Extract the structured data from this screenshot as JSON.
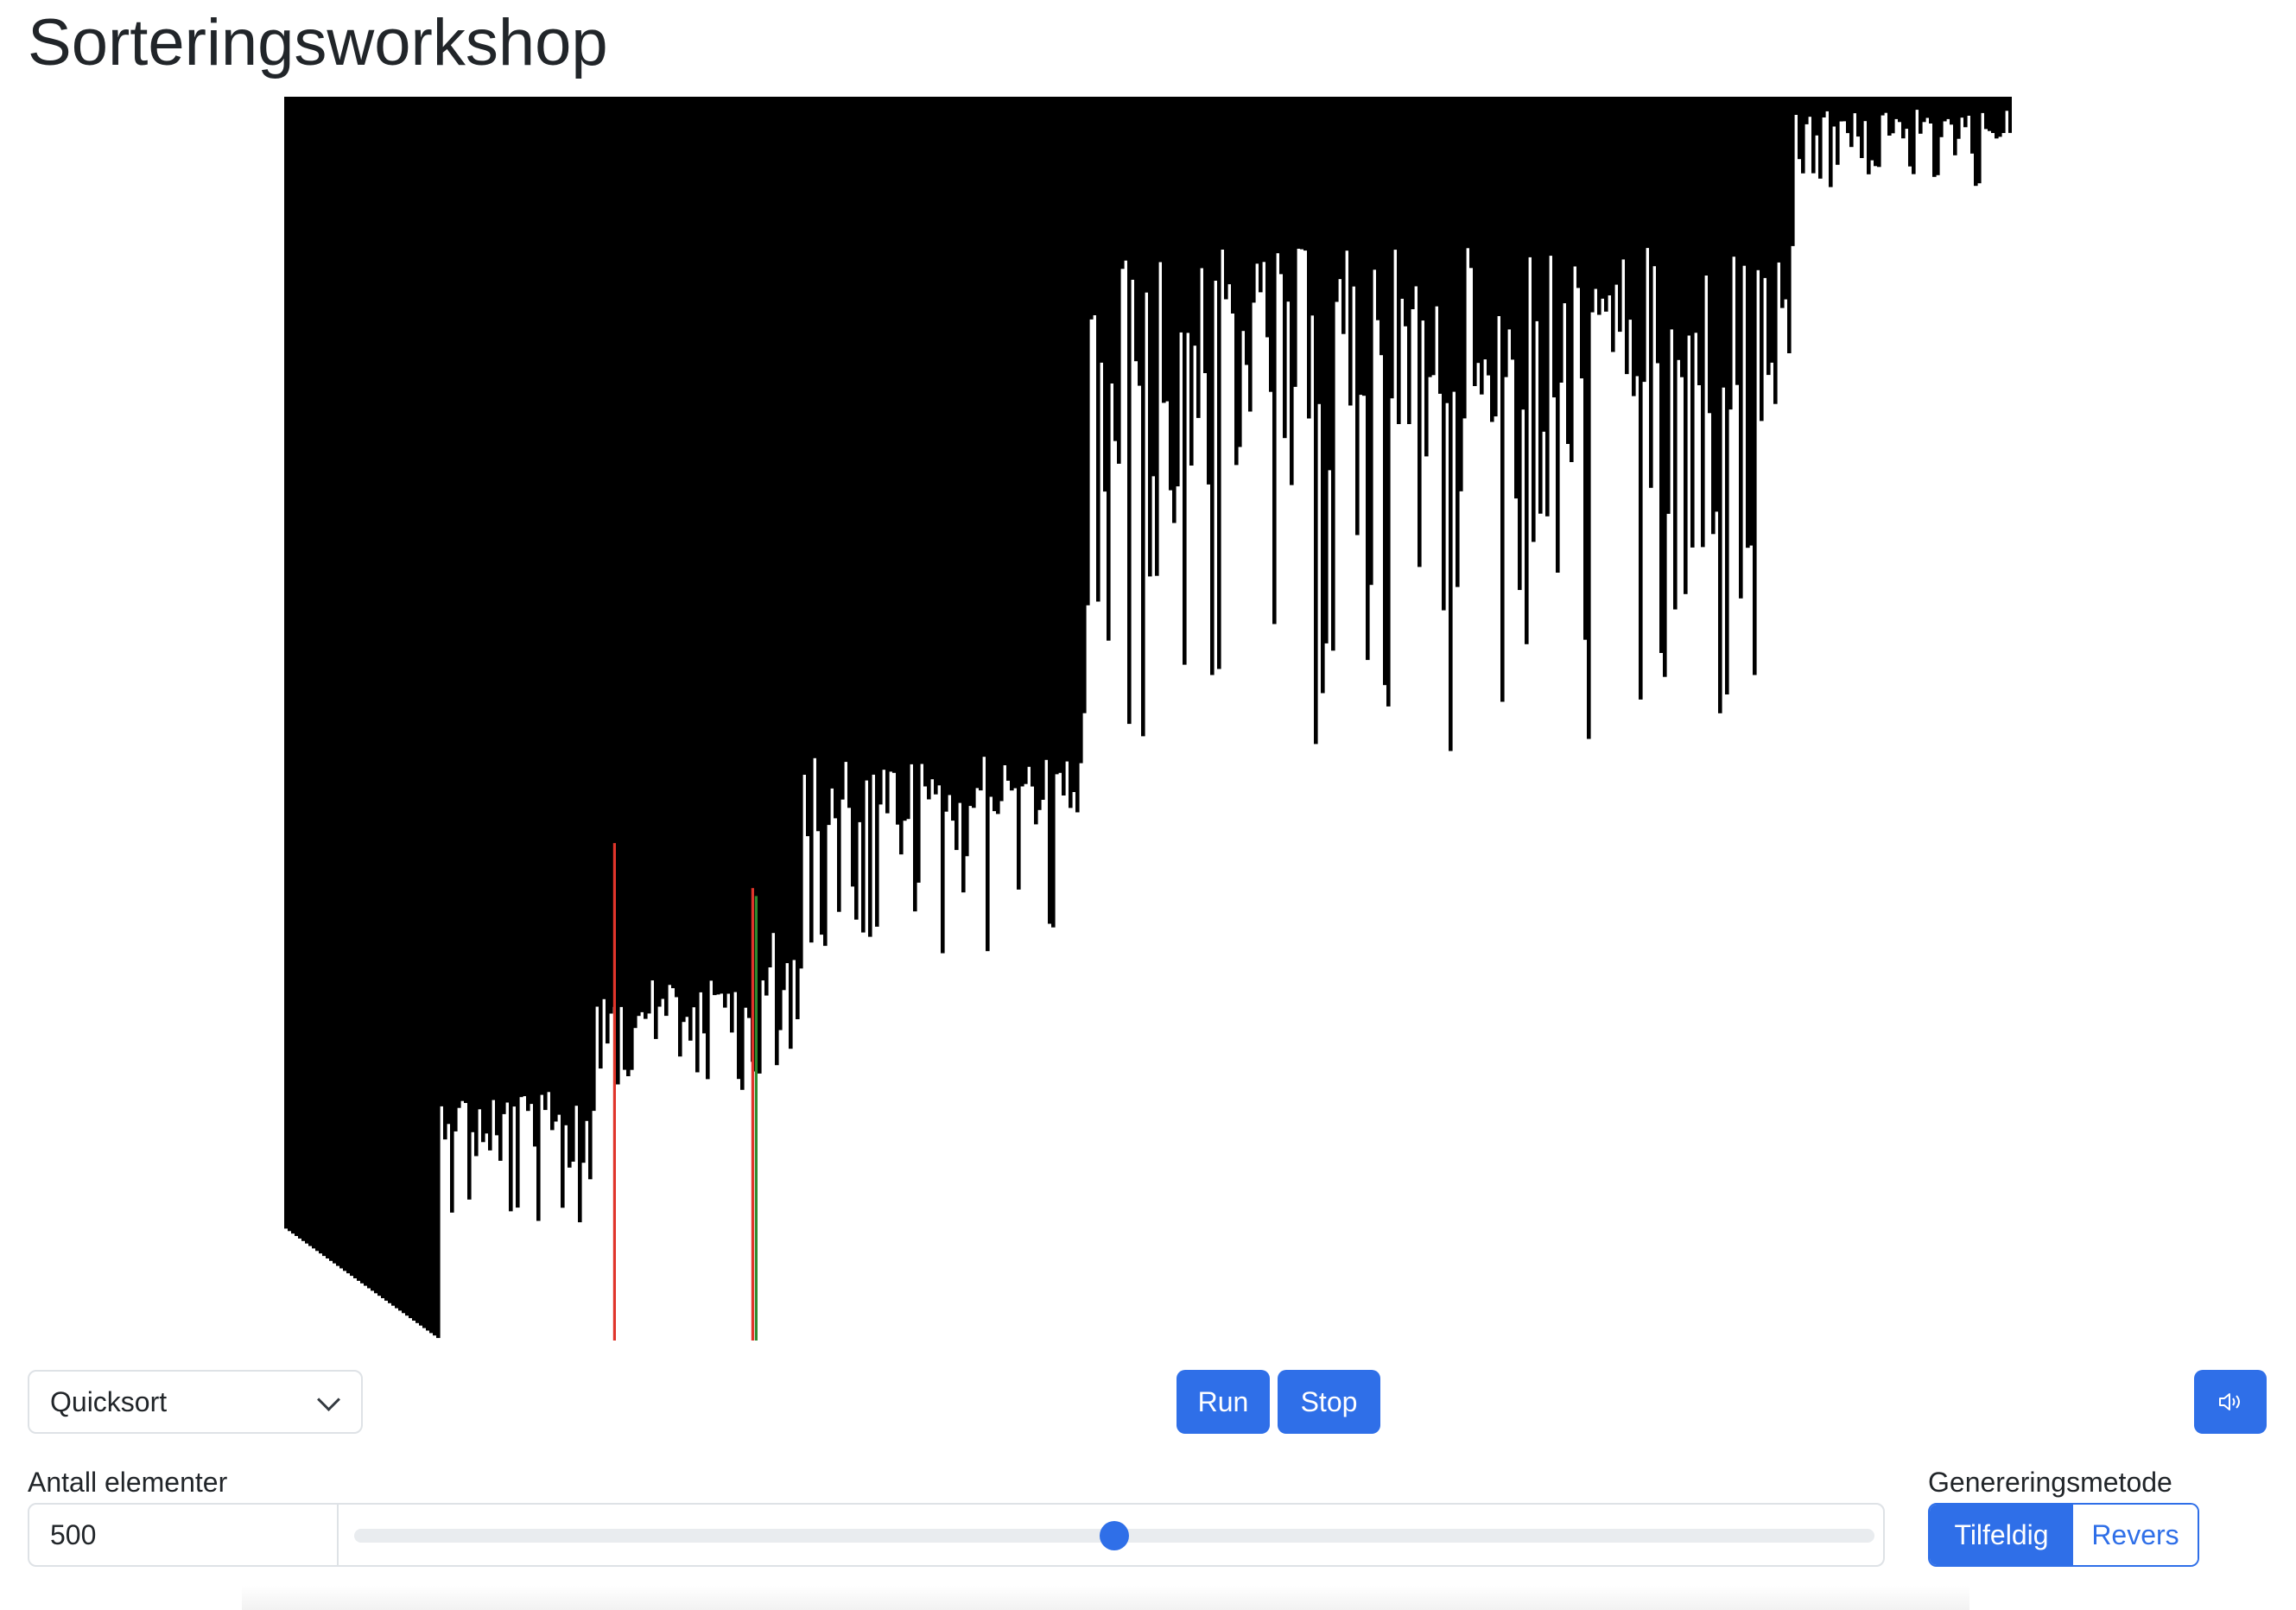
{
  "title": "Sorteringsworkshop",
  "algorithm_select": {
    "value": "Quicksort"
  },
  "buttons": {
    "run": "Run",
    "stop": "Stop",
    "sound_icon": "speaker-icon"
  },
  "element_count": {
    "label": "Antall elementer",
    "value": "500",
    "slider_fraction": 0.5
  },
  "generation_method": {
    "label": "Genereringsmetode",
    "options": [
      "Tilfeldig",
      "Revers"
    ],
    "selected": "Tilfeldig"
  },
  "colors": {
    "accent": "#2f6fe8",
    "bar": "#000000",
    "highlight_red": "#e0352b",
    "highlight_green": "#2e8b2e"
  },
  "visualization": {
    "element_count": 500,
    "highlight_red_indices": [
      95,
      135
    ],
    "highlight_green_indices": [
      136
    ]
  }
}
